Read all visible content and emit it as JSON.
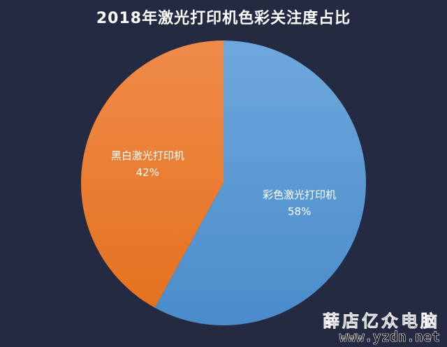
{
  "chart_data": {
    "type": "pie",
    "title": "2018年激光打印机色彩关注度占比",
    "slices": [
      {
        "label": "彩色激光打印机",
        "value": 58,
        "value_label": "58%",
        "color": "#5b9bd5"
      },
      {
        "label": "黑白激光打印机",
        "value": 42,
        "value_label": "42%",
        "color": "#ed7d31"
      }
    ],
    "start": "12 o'clock",
    "direction": "clockwise",
    "legend": "none"
  },
  "watermark": {
    "brand": "薛店亿众电脑",
    "url": "www.yzdn.net"
  }
}
